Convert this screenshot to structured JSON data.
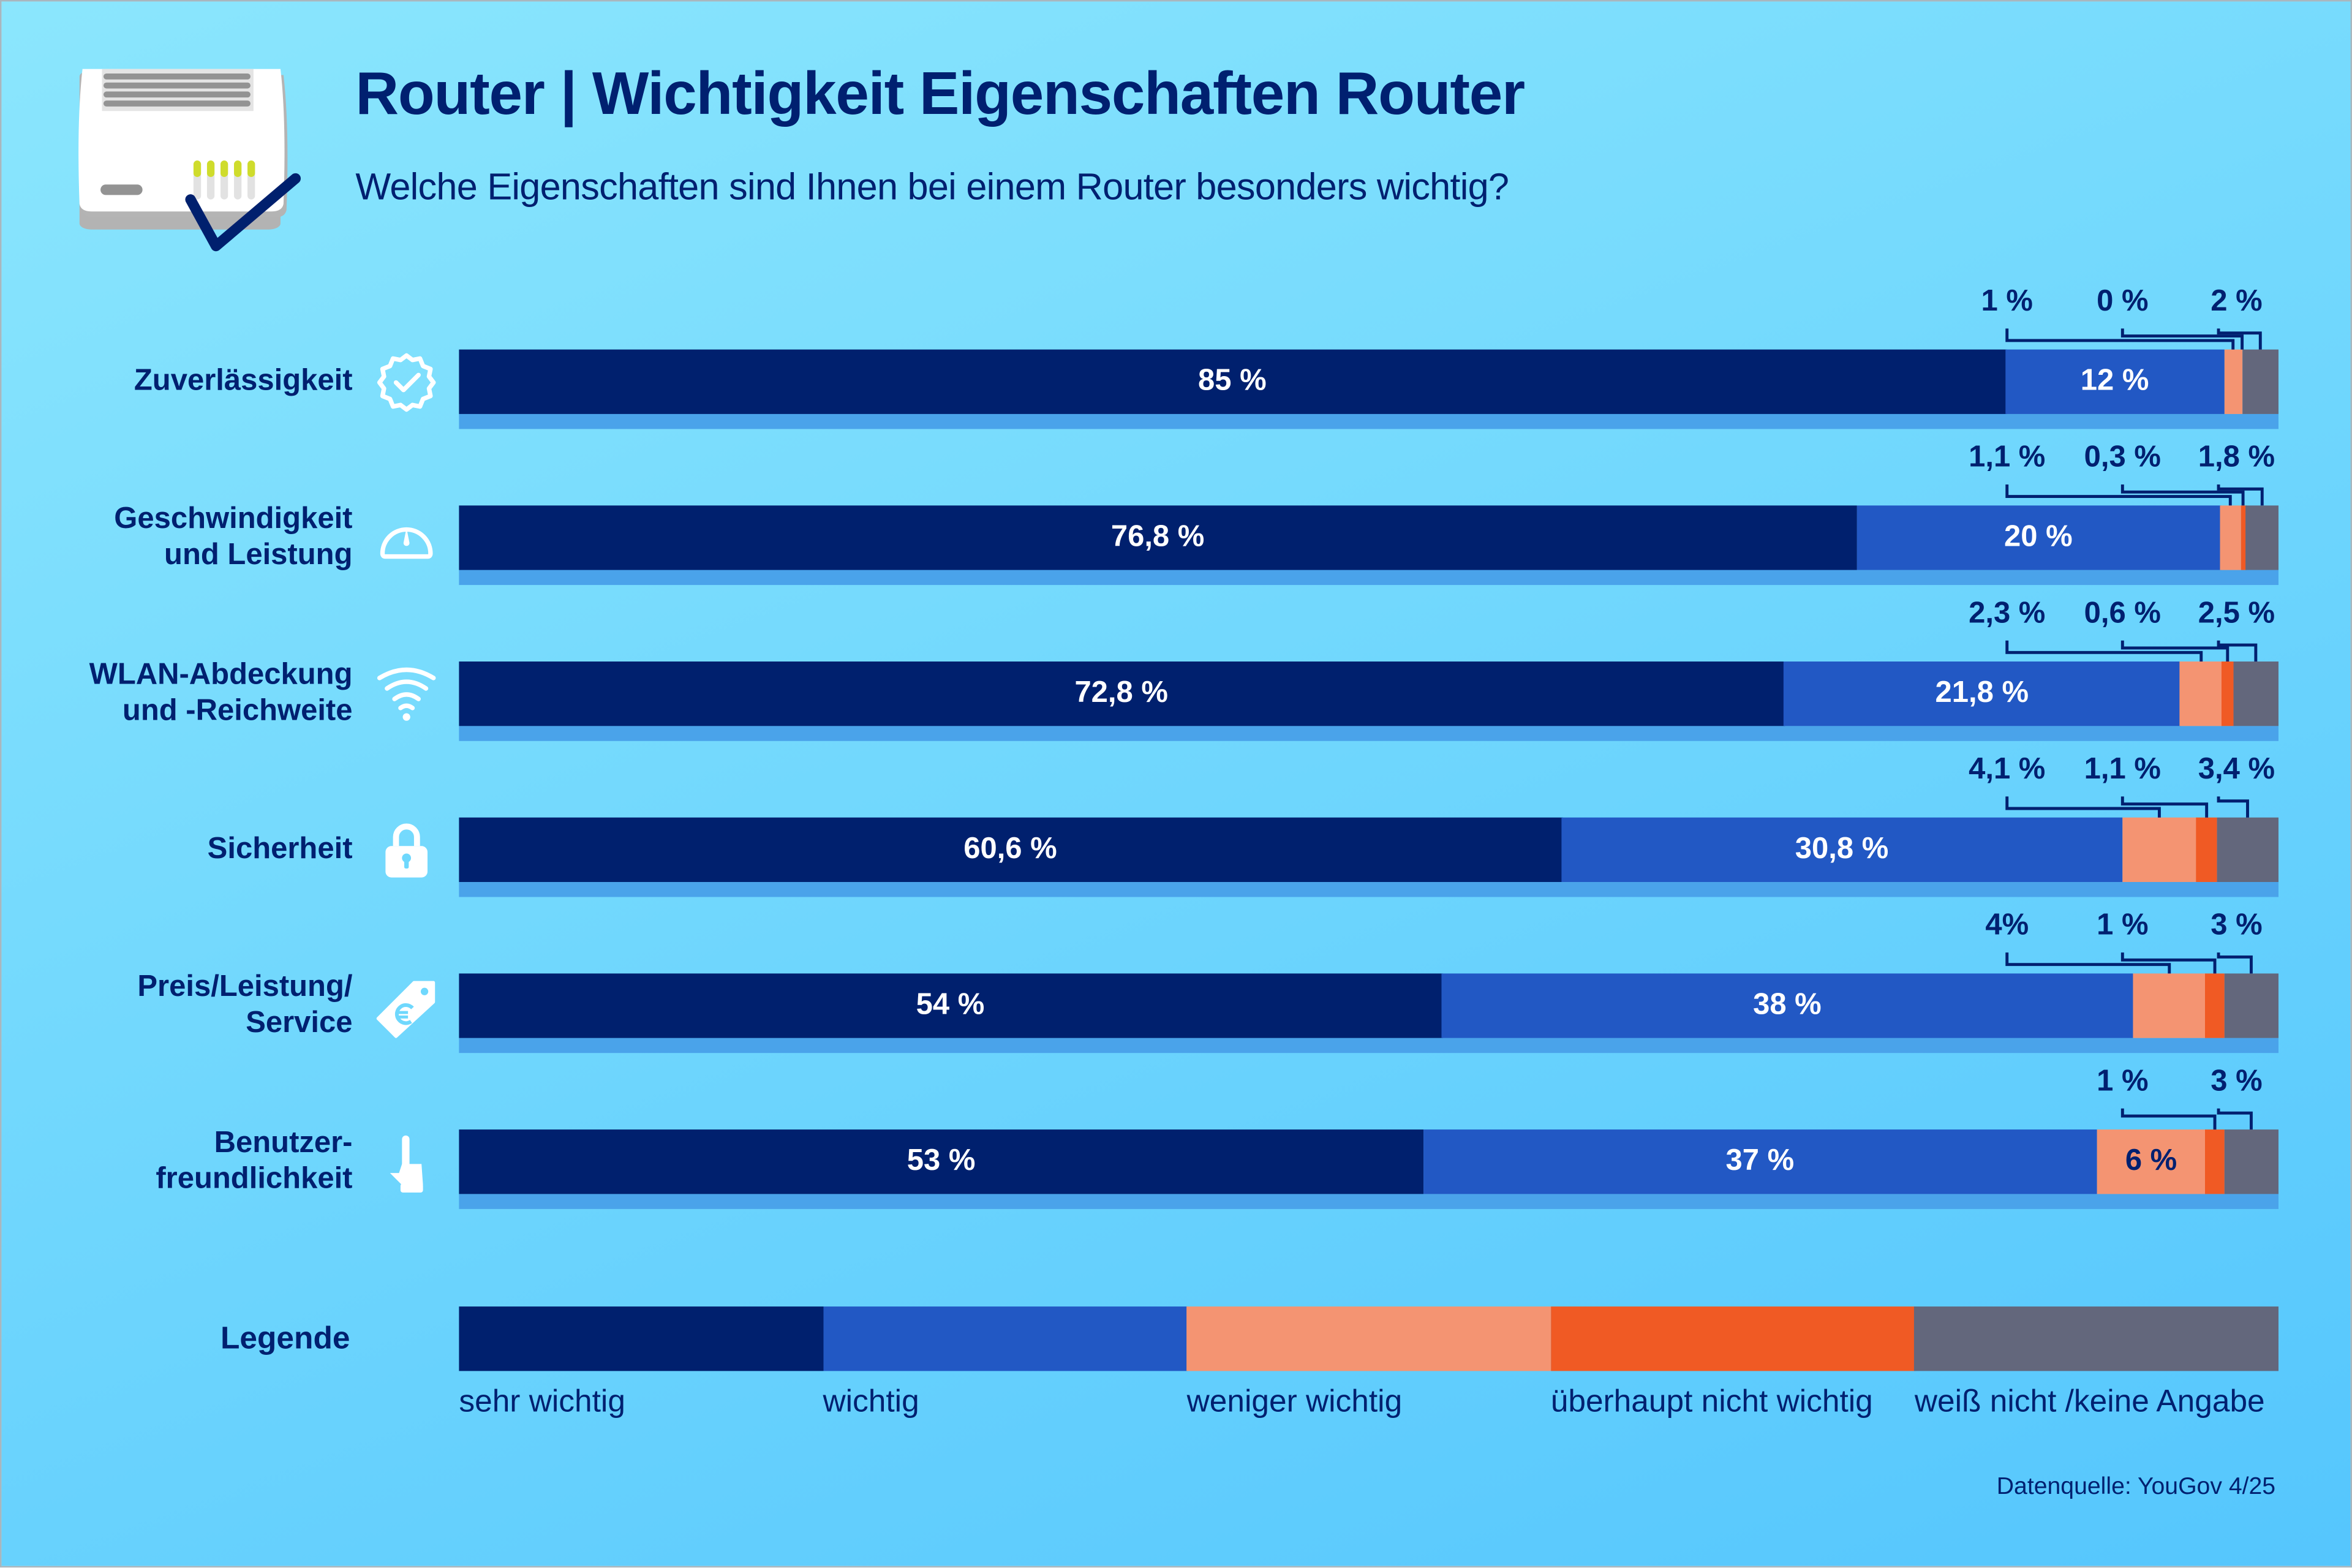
{
  "header": {
    "title": "Router | Wichtigkeit Eigenschaften Router",
    "subtitle": "Welche Eigenschaften sind Ihnen bei einem Router besonders wichtig?"
  },
  "colors": {
    "sehr_wichtig": "#00206e",
    "wichtig": "#2258c4",
    "weniger_wichtig": "#f49472",
    "ueberhaupt_nicht_wichtig": "#f05a24",
    "weiss_nicht": "#63677c",
    "underline": "#4aa3ea",
    "text": "#002070"
  },
  "chart_data": {
    "type": "bar",
    "orientation": "horizontal-stacked-100",
    "title": "Router | Wichtigkeit Eigenschaften Router",
    "subtitle": "Welche Eigenschaften sind Ihnen bei einem Router besonders wichtig?",
    "unit": "%",
    "categories": [
      {
        "label_lines": [
          "Zuverlässigkeit"
        ],
        "icon": "badge-check-icon"
      },
      {
        "label_lines": [
          "Geschwindigkeit",
          "und Leistung"
        ],
        "icon": "speedometer-icon"
      },
      {
        "label_lines": [
          "WLAN-Abdeckung",
          "und -Reichweite"
        ],
        "icon": "wifi-icon"
      },
      {
        "label_lines": [
          "Sicherheit"
        ],
        "icon": "padlock-icon"
      },
      {
        "label_lines": [
          "Preis/Leistung/",
          "Service"
        ],
        "icon": "euro-price-tag-icon"
      },
      {
        "label_lines": [
          "Benutzer-",
          "freundlichkeit"
        ],
        "icon": "pointing-hand-icon"
      }
    ],
    "series": [
      {
        "name": "sehr wichtig",
        "values": [
          85,
          76.8,
          72.8,
          60.6,
          54,
          53
        ],
        "labels": [
          "85 %",
          "76,8 %",
          "72,8 %",
          "60,6 %",
          "54 %",
          "53 %"
        ]
      },
      {
        "name": "wichtig",
        "values": [
          12,
          20,
          21.8,
          30.8,
          38,
          37
        ],
        "labels": [
          "12 %",
          "20 %",
          "21,8 %",
          "30,8 %",
          "38 %",
          "37 %"
        ]
      },
      {
        "name": "weniger wichtig",
        "values": [
          1,
          1.1,
          2.3,
          4.1,
          4,
          6
        ],
        "labels": [
          "1 %",
          "1,1 %",
          "2,3 %",
          "4,1 %",
          "4%",
          "6 %"
        ]
      },
      {
        "name": "überhaupt nicht wichtig",
        "values": [
          0,
          0.3,
          0.6,
          1.1,
          1,
          1
        ],
        "labels": [
          "0 %",
          "0,3 %",
          "0,6 %",
          "1,1 %",
          "1 %",
          "1 %"
        ]
      },
      {
        "name": "weiß nicht /keine Angabe",
        "values": [
          2,
          1.8,
          2.5,
          3.4,
          3,
          3
        ],
        "labels": [
          "2 %",
          "1,8 %",
          "2,5 %",
          "3,4 %",
          "3 %",
          "3 %"
        ]
      }
    ],
    "xlim": [
      0,
      100
    ],
    "legend": {
      "title": "Legende",
      "placement": "bottom",
      "entries": [
        "sehr wichtig",
        "wichtig",
        "weniger wichtig",
        "überhaupt nicht wichtig",
        "weiß nicht /keine Angabe"
      ]
    },
    "source": "Datenquelle: YouGov 4/25"
  }
}
